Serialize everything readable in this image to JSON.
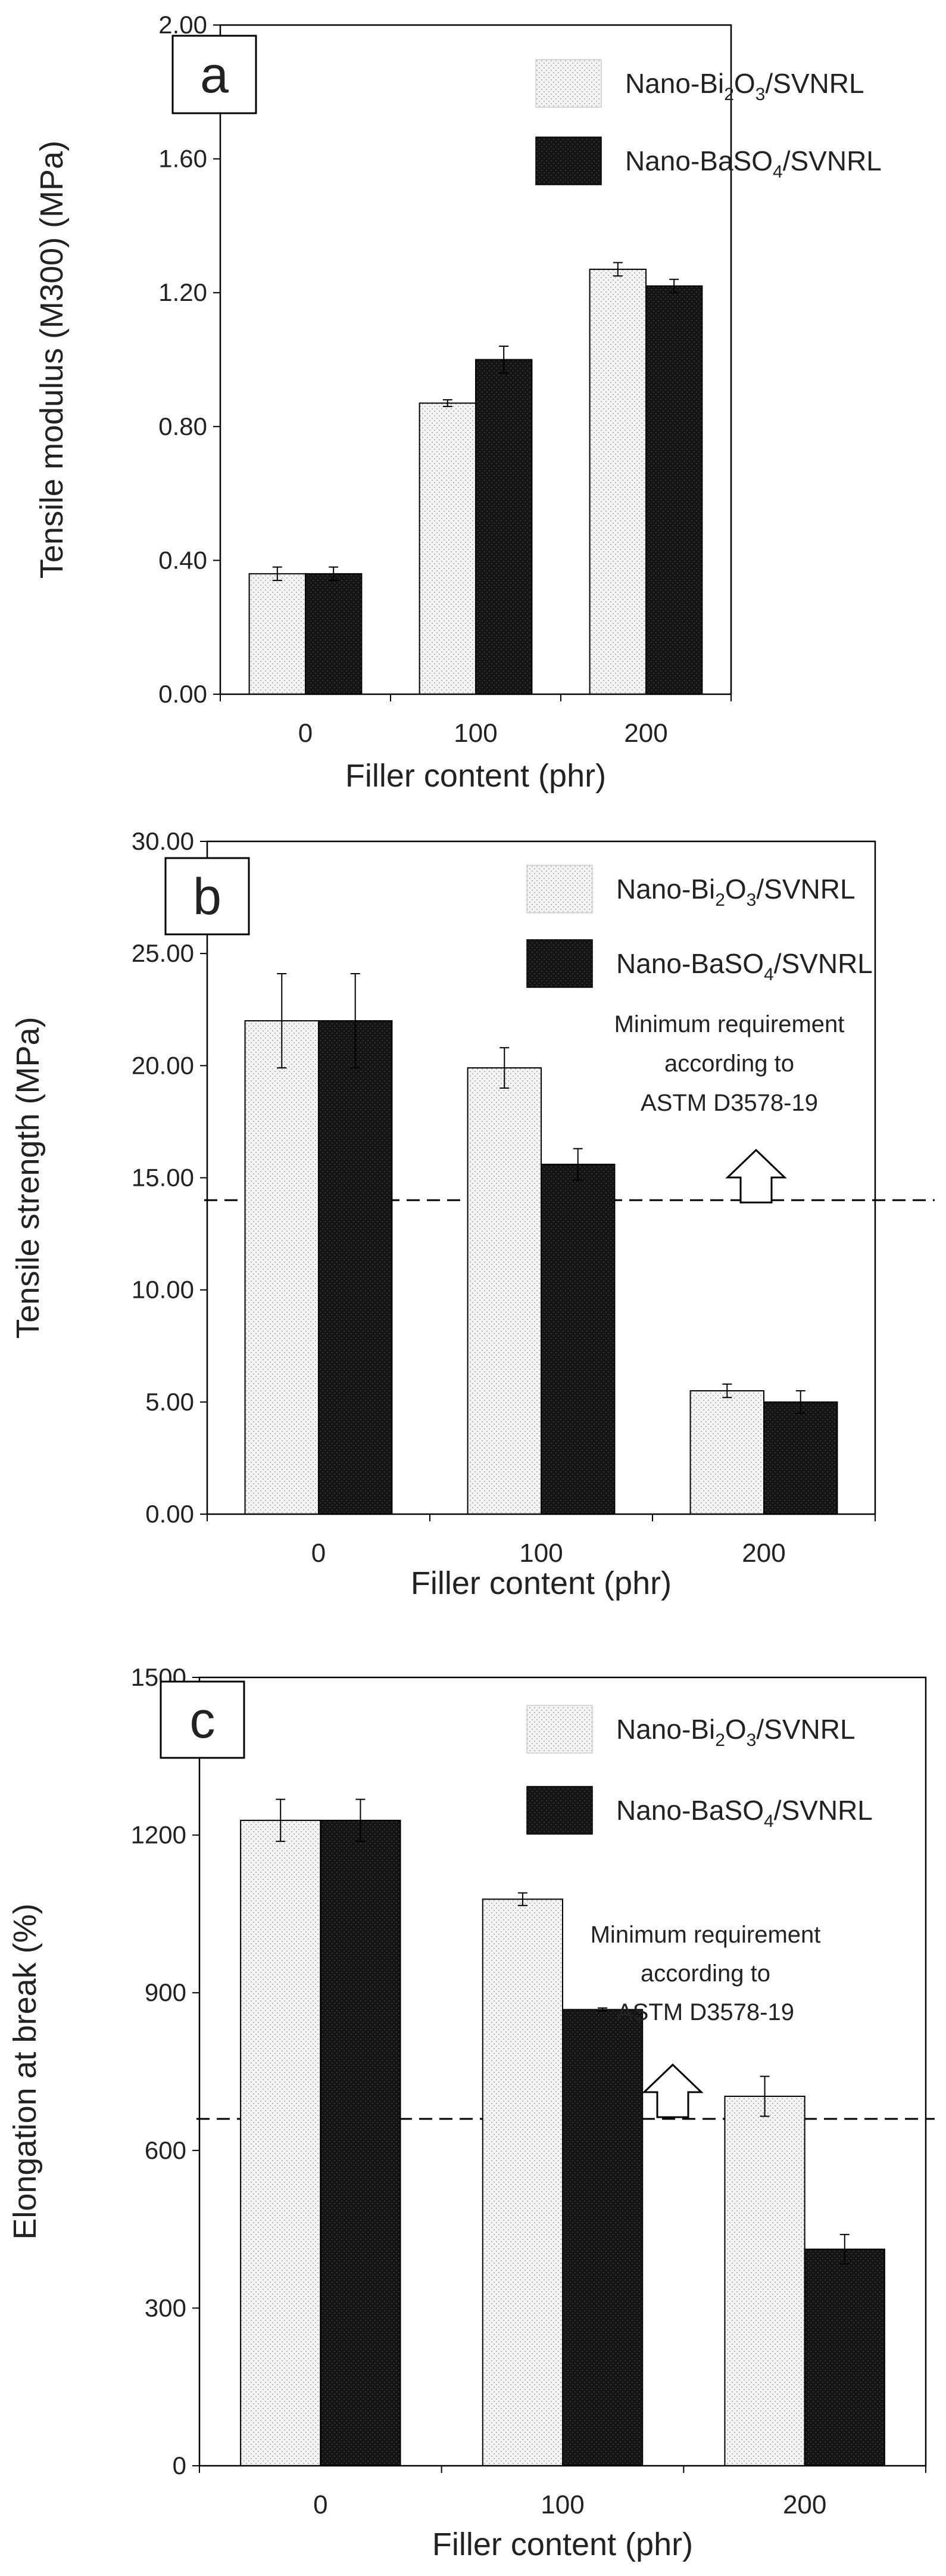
{
  "colors": {
    "bi2o3_fill": "#f1f1f1",
    "baso4_fill": "#141414",
    "axis": "#000000",
    "text": "#222222"
  },
  "icons": {
    "requirement_arrow": "up-arrow-icon"
  },
  "chart_data": [
    {
      "type": "bar",
      "panel_label": "a",
      "categories": [
        "0",
        "100",
        "200"
      ],
      "xlabel": "Filler content (phr)",
      "ylabel": "Tensile modulus (M300) (MPa)",
      "ylim": [
        0,
        2.0
      ],
      "yticks": [
        "0.00",
        "0.40",
        "0.80",
        "1.20",
        "1.60",
        "2.00"
      ],
      "legend_position": "top-right",
      "series": [
        {
          "name": "Nano-Bi2O3/SVNRL",
          "legend": [
            "Nano-Bi",
            "2",
            "O",
            "3",
            "/SVNRL"
          ],
          "values": [
            0.36,
            0.87,
            1.27
          ],
          "errors": [
            0.02,
            0.01,
            0.02
          ]
        },
        {
          "name": "Nano-BaSO4/SVNRL",
          "legend": [
            "Nano-BaSO",
            "4",
            "/SVNRL"
          ],
          "values": [
            0.36,
            1.0,
            1.22
          ],
          "errors": [
            0.02,
            0.04,
            0.02
          ]
        }
      ]
    },
    {
      "type": "bar",
      "panel_label": "b",
      "categories": [
        "0",
        "100",
        "200"
      ],
      "xlabel": "Filler content (phr)",
      "ylabel": "Tensile strength (MPa)",
      "ylim": [
        0,
        30.0
      ],
      "yticks": [
        "0.00",
        "5.00",
        "10.00",
        "15.00",
        "20.00",
        "25.00",
        "30.00"
      ],
      "legend_position": "top-right",
      "reference_line": {
        "value": 14,
        "annotation": [
          "Minimum requirement",
          "according to",
          "ASTM D3578-19"
        ]
      },
      "series": [
        {
          "name": "Nano-Bi2O3/SVNRL",
          "legend": [
            "Nano-Bi",
            "2",
            "O",
            "3",
            "/SVNRL"
          ],
          "values": [
            22.0,
            19.9,
            5.5
          ],
          "errors": [
            2.1,
            0.9,
            0.3
          ]
        },
        {
          "name": "Nano-BaSO4/SVNRL",
          "legend": [
            "Nano-BaSO",
            "4",
            "/SVNRL"
          ],
          "values": [
            22.0,
            15.6,
            5.0
          ],
          "errors": [
            2.1,
            0.7,
            0.5
          ]
        }
      ]
    },
    {
      "type": "bar",
      "panel_label": "c",
      "categories": [
        "0",
        "100",
        "200"
      ],
      "xlabel": "Filler content (phr)",
      "ylabel": "Elongation at break (%)",
      "ylim": [
        0,
        1500
      ],
      "yticks": [
        "0",
        "300",
        "600",
        "900",
        "1200",
        "1500"
      ],
      "legend_position": "top-right",
      "reference_line": {
        "value": 660,
        "annotation": [
          "Minimum requirement",
          "according to",
          "ASTM D3578-19"
        ]
      },
      "series": [
        {
          "name": "Nano-Bi2O3/SVNRL",
          "legend": [
            "Nano-Bi",
            "2",
            "O",
            "3",
            "/SVNRL"
          ],
          "values": [
            1228,
            1078,
            703
          ],
          "errors": [
            40,
            12,
            38
          ]
        },
        {
          "name": "Nano-BaSO4/SVNRL",
          "legend": [
            "Nano-BaSO",
            "4",
            "/SVNRL"
          ],
          "values": [
            1228,
            868,
            412
          ],
          "errors": [
            40,
            3,
            28
          ]
        }
      ]
    }
  ]
}
